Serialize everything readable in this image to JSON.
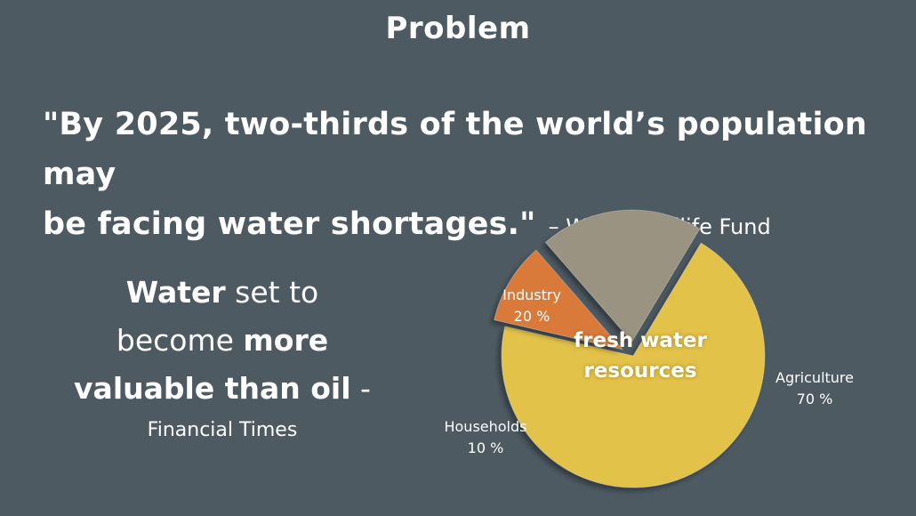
{
  "slide": {
    "title": "Problem",
    "quote_line1": "\"By 2025, two-thirds of the world’s population may",
    "quote_line2": "be facing water shortages.\"",
    "quote_attribution": "– World Wildlife Fund",
    "side": {
      "part1_bold": "Water",
      "part1_rest": " set to",
      "part2_plain": "become ",
      "part2_bold": "more",
      "part3_bold": "valuable than oil",
      "part3_rest": " -",
      "source": "Financial Times"
    }
  },
  "chart_data": {
    "type": "pie",
    "title": "fresh water resources",
    "center_label_line1": "fresh water",
    "center_label_line2": "resources",
    "slices": [
      {
        "name": "Agriculture",
        "value": 70,
        "label": "70 %",
        "color": "#e3c24a"
      },
      {
        "name": "Households",
        "value": 10,
        "label": "10 %",
        "color": "#d97a3a"
      },
      {
        "name": "Industry",
        "value": 20,
        "label": "20 %",
        "color": "#9b9381"
      }
    ]
  }
}
